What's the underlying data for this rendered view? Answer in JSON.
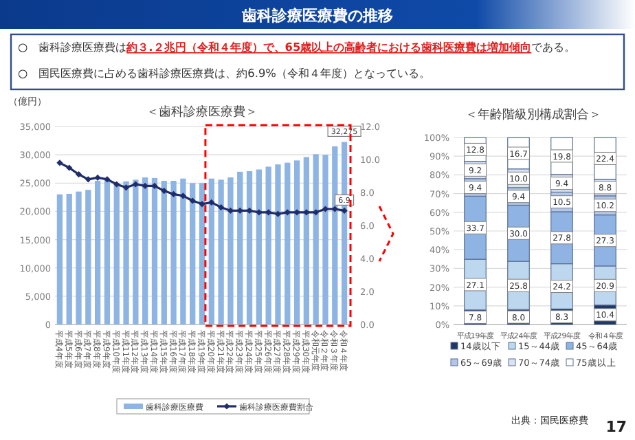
{
  "chart_data": [
    {
      "type": "bar",
      "title": "＜歯科診療医療費＞",
      "ylabel": "（億円）",
      "annotations": [
        "歯科診療医療費の推移",
        "○　歯科診療医療費は",
        "約３.２兆円（令和４年度）で、65歳以上の高齢者における歯科医療費は増加傾向",
        "である。",
        "○　国民医療費に占める歯科診療医療費は、約6.9%（令和４年度）となっている。",
        "出典：国民医療費",
        "17"
      ],
      "categories": [
        "平成4年度",
        "平成5年度",
        "平成6年度",
        "平成7年度",
        "平成8年度",
        "平成9年度",
        "平成10年度",
        "平成11年度",
        "平成12年度",
        "平成13年度",
        "平成14年度",
        "平成15年度",
        "平成16年度",
        "平成17年度",
        "平成18年度",
        "平成19年度",
        "平成20年度",
        "平成21年度",
        "平成22年度",
        "平成23年度",
        "平成24年度",
        "平成25年度",
        "平成26年度",
        "平成27年度",
        "平成28年度",
        "平成29年度",
        "平成30年度",
        "令和元年度",
        "令和２年度",
        "令和３年度",
        "令和４年度"
      ],
      "series": [
        {
          "name": "歯科診療医療費",
          "type": "bar",
          "color": "#8db4e2",
          "values": [
            23000,
            23100,
            23500,
            23800,
            25400,
            25600,
            25000,
            25300,
            25600,
            26000,
            25900,
            25400,
            25400,
            25800,
            25000,
            25000,
            25800,
            25600,
            26000,
            27000,
            27100,
            27400,
            27900,
            28300,
            28600,
            29000,
            29600,
            30100,
            30000,
            31500,
            32275
          ],
          "value_labels": [
            null,
            null,
            null,
            null,
            null,
            null,
            null,
            null,
            null,
            null,
            null,
            null,
            null,
            null,
            null,
            null,
            null,
            null,
            null,
            null,
            null,
            null,
            null,
            null,
            null,
            null,
            null,
            null,
            null,
            null,
            "32,275"
          ]
        },
        {
          "name": "歯科診療医療費割合",
          "type": "line",
          "axis": "y2",
          "color": "#1f2d6b",
          "marker": "diamond",
          "values": [
            9.8,
            9.5,
            9.1,
            8.8,
            8.9,
            8.8,
            8.5,
            8.3,
            8.5,
            8.4,
            8.4,
            8.1,
            7.9,
            7.8,
            7.5,
            7.3,
            7.4,
            7.1,
            6.9,
            6.9,
            6.9,
            6.8,
            6.8,
            6.7,
            6.8,
            6.8,
            6.8,
            6.8,
            7.0,
            7.0,
            6.9
          ],
          "value_labels": [
            null,
            null,
            null,
            null,
            null,
            null,
            null,
            null,
            null,
            null,
            null,
            null,
            null,
            null,
            null,
            null,
            null,
            null,
            null,
            null,
            null,
            null,
            null,
            null,
            null,
            null,
            null,
            null,
            null,
            null,
            "6.9"
          ]
        }
      ],
      "ylim": [
        0,
        35000
      ],
      "yticks": [
        {
          "value": 0,
          "label": "0"
        },
        {
          "value": 5000,
          "label": "5,000"
        },
        {
          "value": 10000,
          "label": "10,000"
        },
        {
          "value": 15000,
          "label": "15,000"
        },
        {
          "value": 20000,
          "label": "20,000"
        },
        {
          "value": 25000,
          "label": "25,000"
        },
        {
          "value": 30000,
          "label": "30,000"
        },
        {
          "value": 35000,
          "label": "35,000"
        }
      ],
      "y2lim": [
        0,
        12
      ],
      "y2ticks": [
        {
          "value": 0,
          "label": "0.0"
        },
        {
          "value": 2,
          "label": "2.0"
        },
        {
          "value": 4,
          "label": "4.0"
        },
        {
          "value": 6,
          "label": "6.0"
        },
        {
          "value": 8,
          "label": "8.0"
        },
        {
          "value": 10,
          "label": "10.0"
        },
        {
          "value": 12,
          "label": "12.0"
        }
      ],
      "grid": "y",
      "legend": "bottom"
    },
    {
      "type": "bar",
      "title": "＜年齢階級別構成割合＞",
      "stacked": true,
      "grid": "y",
      "legend": "bottom",
      "categories": [
        "平成19年度",
        "平成24年度",
        "平成29年度",
        "令和４年度"
      ],
      "series": [
        {
          "name": "14歳以下",
          "color": "#1f3864",
          "values": [
            7.8,
            8.0,
            8.3,
            10.4
          ],
          "value_labels": [
            "7.8",
            "8.0",
            "8.3",
            "10.4"
          ]
        },
        {
          "name": "15～44歳",
          "color": "#bdd7ee",
          "values": [
            27.1,
            25.8,
            24.2,
            20.9
          ],
          "value_labels": [
            "27.1",
            "25.8",
            "24.2",
            "20.9"
          ]
        },
        {
          "name": "45～64歳",
          "color": "#8fb4e3",
          "values": [
            33.7,
            30.0,
            27.8,
            27.3
          ],
          "value_labels": [
            "33.7",
            "30.0",
            "27.8",
            "27.3"
          ]
        },
        {
          "name": "65～69歳",
          "color": "#b4c7e7",
          "values": [
            9.4,
            9.4,
            10.5,
            10.2
          ],
          "value_labels": [
            "9.4",
            "9.4",
            "10.5",
            "10.2"
          ]
        },
        {
          "name": "70～74歳",
          "color": "#dae3f3",
          "values": [
            9.2,
            10.0,
            9.4,
            8.8
          ],
          "value_labels": [
            "9.2",
            "10.0",
            "9.4",
            "8.8"
          ]
        },
        {
          "name": "75歳以上",
          "color": "#ffffff",
          "values": [
            12.8,
            16.7,
            19.8,
            22.4
          ],
          "value_labels": [
            "12.8",
            "16.7",
            "19.8",
            "22.4"
          ]
        }
      ],
      "ylim": [
        0,
        100
      ],
      "yticks": [
        {
          "value": 0,
          "label": "0%"
        },
        {
          "value": 10,
          "label": "10%"
        },
        {
          "value": 20,
          "label": "20%"
        },
        {
          "value": 30,
          "label": "30%"
        },
        {
          "value": 40,
          "label": "40%"
        },
        {
          "value": 50,
          "label": "50%"
        },
        {
          "value": 60,
          "label": "60%"
        },
        {
          "value": 70,
          "label": "70%"
        },
        {
          "value": 80,
          "label": "80%"
        },
        {
          "value": 90,
          "label": "90%"
        },
        {
          "value": 100,
          "label": "100%"
        }
      ]
    }
  ]
}
